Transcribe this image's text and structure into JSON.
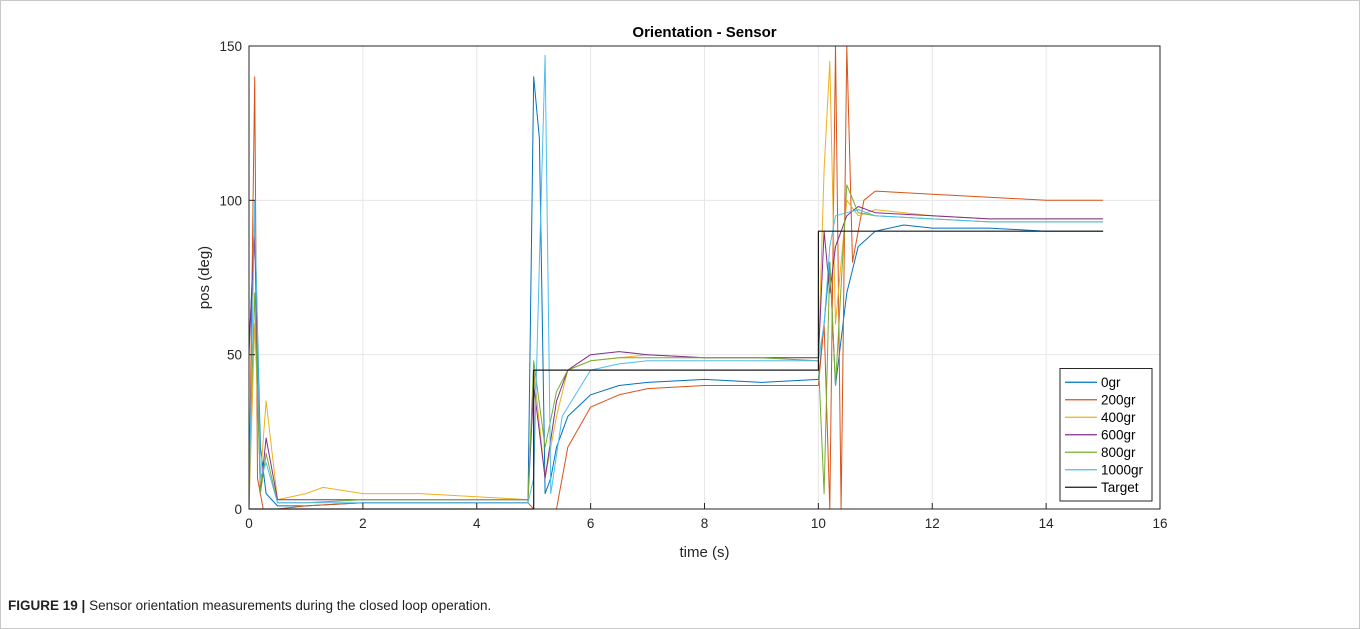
{
  "caption": {
    "label": "FIGURE 19 |",
    "text": "Sensor orientation measurements during the closed loop operation."
  },
  "chart_data": {
    "type": "line",
    "title": "Orientation - Sensor",
    "xlabel": "time (s)",
    "ylabel": "pos (deg)",
    "xlim": [
      0,
      16
    ],
    "ylim": [
      0,
      150
    ],
    "xticks": [
      0,
      2,
      4,
      6,
      8,
      10,
      12,
      14,
      16
    ],
    "yticks": [
      0,
      50,
      100,
      150
    ],
    "grid": true,
    "legend_position": "bottom-right",
    "series": [
      {
        "name": "0gr",
        "color": "#0072bd",
        "x": [
          0,
          0.1,
          0.2,
          0.3,
          0.5,
          1,
          2,
          3,
          4,
          4.9,
          5.0,
          5.1,
          5.2,
          5.3,
          5.4,
          5.6,
          6,
          6.5,
          7,
          8,
          9,
          10,
          10.1,
          10.2,
          10.3,
          10.5,
          10.7,
          11,
          11.5,
          12,
          13,
          14,
          15
        ],
        "y": [
          50,
          95,
          20,
          5,
          1,
          1,
          2,
          2,
          2,
          2,
          140,
          120,
          5,
          10,
          20,
          30,
          37,
          40,
          41,
          42,
          41,
          42,
          60,
          80,
          40,
          70,
          85,
          90,
          92,
          91,
          91,
          90,
          90
        ]
      },
      {
        "name": "200gr",
        "color": "#d95319",
        "x": [
          0,
          0.1,
          0.15,
          0.25,
          0.5,
          1,
          2,
          3,
          4,
          4.9,
          5.0,
          5.2,
          5.4,
          5.6,
          6,
          6.5,
          7,
          8,
          9,
          10,
          10.1,
          10.2,
          10.3,
          10.4,
          10.5,
          10.6,
          10.8,
          11,
          12,
          13,
          14,
          15
        ],
        "y": [
          0,
          140,
          10,
          0,
          0,
          1,
          2,
          2,
          2,
          2,
          0,
          0,
          0,
          20,
          33,
          37,
          39,
          40,
          40,
          40,
          60,
          0,
          150,
          0,
          150,
          80,
          100,
          103,
          102,
          101,
          100,
          100
        ]
      },
      {
        "name": "400gr",
        "color": "#edb120",
        "x": [
          0,
          0.1,
          0.2,
          0.3,
          0.5,
          1,
          1.3,
          2,
          3,
          4,
          4.9,
          5.0,
          5.2,
          5.4,
          5.6,
          6,
          6.5,
          7,
          8,
          9,
          10,
          10.1,
          10.2,
          10.3,
          10.5,
          10.7,
          11,
          12,
          13,
          14,
          15
        ],
        "y": [
          0,
          60,
          10,
          35,
          3,
          5,
          7,
          5,
          5,
          4,
          3,
          45,
          10,
          30,
          45,
          48,
          49,
          50,
          49,
          49,
          49,
          110,
          145,
          60,
          100,
          95,
          97,
          95,
          94,
          94,
          94
        ]
      },
      {
        "name": "600gr",
        "color": "#7e2f8e",
        "x": [
          0,
          0.1,
          0.2,
          0.3,
          0.5,
          1,
          2,
          3,
          4,
          4.9,
          5.0,
          5.2,
          5.4,
          5.6,
          6,
          6.5,
          7,
          8,
          9,
          10,
          10.1,
          10.2,
          10.3,
          10.5,
          10.7,
          11,
          12,
          13,
          14,
          15
        ],
        "y": [
          53,
          88,
          5,
          23,
          3,
          3,
          3,
          3,
          3,
          3,
          40,
          10,
          35,
          45,
          50,
          51,
          50,
          49,
          49,
          49,
          90,
          70,
          85,
          95,
          98,
          96,
          95,
          94,
          94,
          94
        ]
      },
      {
        "name": "800gr",
        "color": "#77ac30",
        "x": [
          0,
          0.1,
          0.2,
          0.3,
          0.5,
          1,
          2,
          3,
          4,
          4.9,
          5.0,
          5.2,
          5.4,
          5.6,
          6,
          6.5,
          7,
          8,
          9,
          10,
          10.1,
          10.2,
          10.3,
          10.5,
          10.7,
          11,
          12,
          13,
          14,
          15
        ],
        "y": [
          10,
          70,
          5,
          18,
          2,
          2,
          3,
          3,
          3,
          3,
          48,
          20,
          38,
          45,
          48,
          49,
          49,
          49,
          49,
          48,
          5,
          80,
          40,
          105,
          96,
          95,
          94,
          93,
          93,
          93
        ]
      },
      {
        "name": "1000gr",
        "color": "#4dbeee",
        "x": [
          0,
          0.1,
          0.2,
          0.3,
          0.5,
          1,
          2,
          3,
          4,
          4.9,
          5.0,
          5.1,
          5.2,
          5.3,
          5.5,
          6,
          6.5,
          7,
          8,
          9,
          10,
          10.1,
          10.2,
          10.3,
          10.5,
          10.7,
          11,
          12,
          13,
          14,
          15
        ],
        "y": [
          0,
          100,
          10,
          15,
          2,
          2,
          2,
          2,
          2,
          2,
          10,
          80,
          147,
          5,
          30,
          45,
          47,
          48,
          48,
          48,
          48,
          60,
          85,
          95,
          96,
          97,
          95,
          94,
          93,
          93,
          93
        ]
      },
      {
        "name": "Target",
        "color": "#1a1a1a",
        "x": [
          0,
          5,
          5,
          10,
          10,
          15
        ],
        "y": [
          0,
          0,
          45,
          45,
          90,
          90
        ]
      }
    ]
  }
}
